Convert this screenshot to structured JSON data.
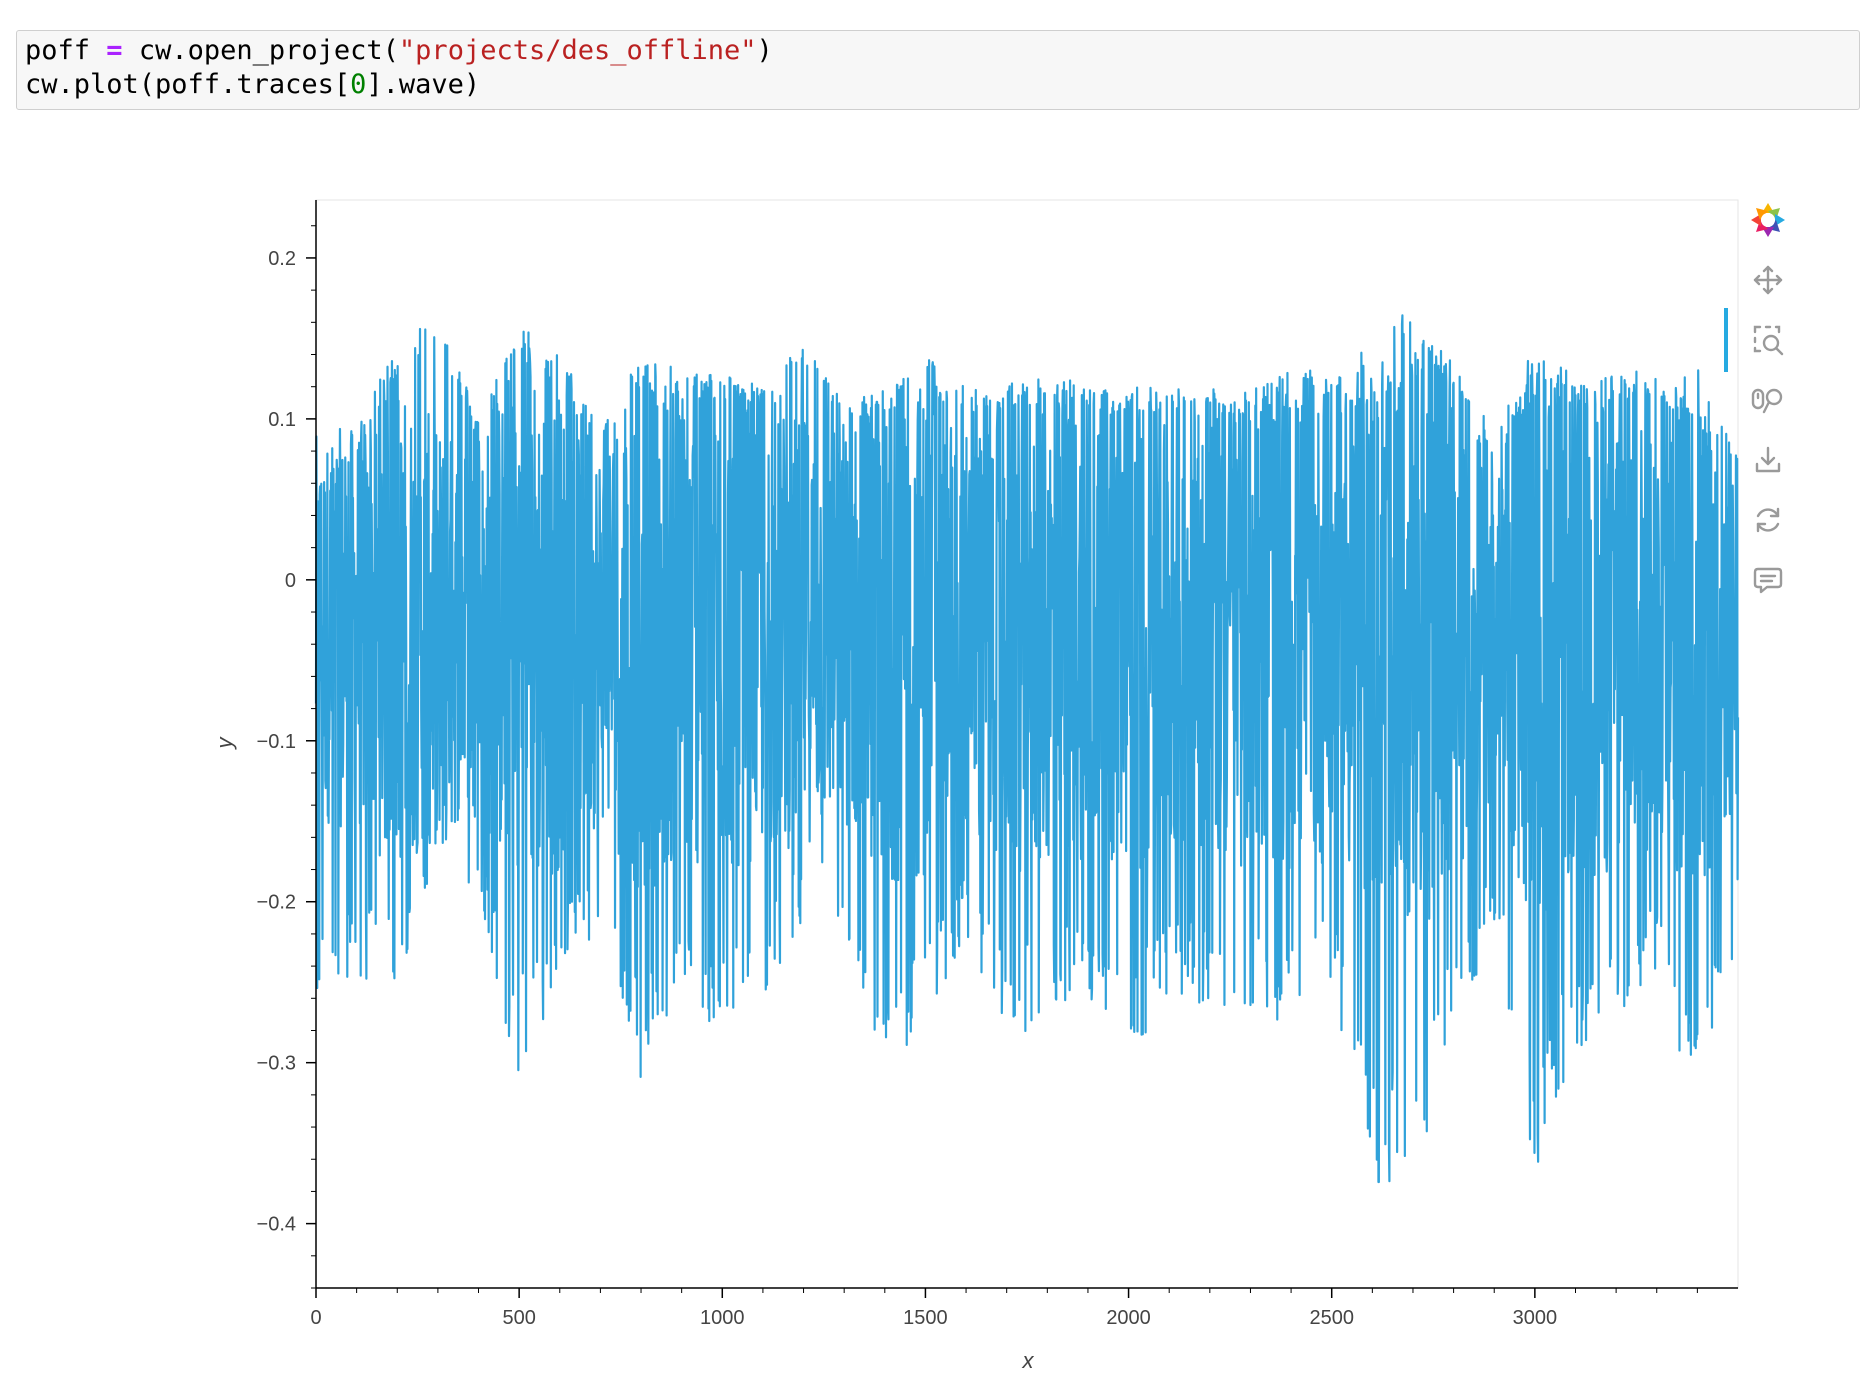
{
  "code_cell": {
    "line1": {
      "var": "poff",
      "op": "=",
      "call": "cw.open_project(",
      "str": "\"projects/des_offline\"",
      "close": ")"
    },
    "line2": {
      "pre": "cw.plot(poff.traces[",
      "num": "0",
      "post": "].wave)"
    }
  },
  "toolbar": {
    "tools": [
      "bokeh-logo-icon",
      "pan-icon",
      "box-zoom-icon",
      "wheel-zoom-icon",
      "save-icon",
      "reset-icon",
      "hover-icon"
    ],
    "active": [
      "pan-icon",
      "box-zoom-icon",
      "wheel-zoom-icon"
    ]
  },
  "chart_data": {
    "type": "line",
    "xlabel": "x",
    "ylabel": "y",
    "xlim": [
      0,
      3500
    ],
    "ylim": [
      -0.44,
      0.236
    ],
    "x_ticks": [
      0,
      500,
      1000,
      1500,
      2000,
      2500,
      3000
    ],
    "x_tick_labels": [
      "0",
      "500",
      "1000",
      "1500",
      "2000",
      "2500",
      "3000"
    ],
    "y_ticks": [
      0.2,
      0.1,
      0,
      -0.1,
      -0.2,
      -0.3,
      -0.4
    ],
    "y_tick_labels": [
      "0.2",
      "0.1",
      "0",
      "−0.1",
      "−0.2",
      "−0.3",
      "−0.4"
    ],
    "series": [
      {
        "color": "#30a2da",
        "x": [
          0,
          100,
          200,
          300,
          400,
          500,
          600,
          700,
          800,
          900,
          1000,
          1100,
          1200,
          1300,
          1400,
          1500,
          1600,
          1700,
          1800,
          1900,
          2000,
          2100,
          2200,
          2300,
          2400,
          2500,
          2600,
          2700,
          2800,
          2900,
          3000,
          3100,
          3200,
          3300,
          3400,
          3500
        ],
        "y_max": [
          0.06,
          0.09,
          0.15,
          0.17,
          0.1,
          0.16,
          0.14,
          0.1,
          0.14,
          0.13,
          0.13,
          0.12,
          0.15,
          0.11,
          0.12,
          0.14,
          0.12,
          0.12,
          0.13,
          0.12,
          0.12,
          0.12,
          0.12,
          0.12,
          0.13,
          0.13,
          0.11,
          0.15,
          0.14,
          0.09,
          0.13,
          0.12,
          0.13,
          0.13,
          0.11,
          0.08
        ],
        "y_min": [
          -0.26,
          -0.25,
          -0.26,
          -0.17,
          -0.21,
          -0.31,
          -0.26,
          -0.22,
          -0.31,
          -0.26,
          -0.29,
          -0.26,
          -0.21,
          -0.22,
          -0.3,
          -0.28,
          -0.22,
          -0.29,
          -0.27,
          -0.26,
          -0.3,
          -0.26,
          -0.27,
          -0.28,
          -0.27,
          -0.26,
          -0.38,
          -0.38,
          -0.28,
          -0.22,
          -0.37,
          -0.29,
          -0.29,
          -0.24,
          -0.34,
          -0.22
        ]
      }
    ]
  }
}
